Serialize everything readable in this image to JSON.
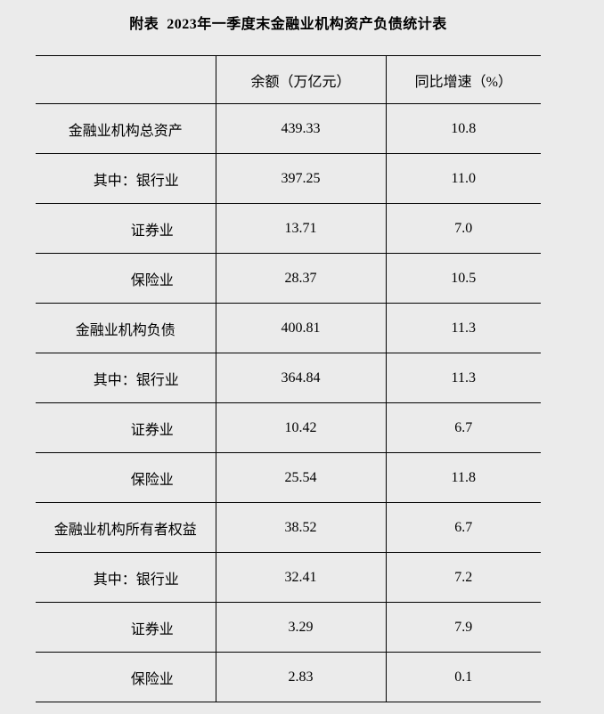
{
  "page": {
    "background_color": "#ebebeb",
    "text_color": "#000000",
    "border_color": "#000000"
  },
  "title": "附表  2023年一季度末金融业机构资产负债统计表",
  "table": {
    "columns": [
      {
        "label": ""
      },
      {
        "label": "余额（万亿元）"
      },
      {
        "label": "同比增速（%）"
      }
    ],
    "rows": [
      {
        "label": "金融业机构总资产",
        "indent": 0,
        "balance": "439.33",
        "growth": "10.8"
      },
      {
        "label": "其中：银行业",
        "indent": 1,
        "balance": "397.25",
        "growth": "11.0"
      },
      {
        "label": "证券业",
        "indent": 2,
        "balance": "13.71",
        "growth": "7.0"
      },
      {
        "label": "保险业",
        "indent": 2,
        "balance": "28.37",
        "growth": "10.5"
      },
      {
        "label": "金融业机构负债",
        "indent": 0,
        "balance": "400.81",
        "growth": "11.3"
      },
      {
        "label": "其中：银行业",
        "indent": 1,
        "balance": "364.84",
        "growth": "11.3"
      },
      {
        "label": "证券业",
        "indent": 2,
        "balance": "10.42",
        "growth": "6.7"
      },
      {
        "label": "保险业",
        "indent": 2,
        "balance": "25.54",
        "growth": "11.8"
      },
      {
        "label": "金融业机构所有者权益",
        "indent": 0,
        "balance": "38.52",
        "growth": "6.7"
      },
      {
        "label": "其中：银行业",
        "indent": 1,
        "balance": "32.41",
        "growth": "7.2"
      },
      {
        "label": "证券业",
        "indent": 2,
        "balance": "3.29",
        "growth": "7.9"
      },
      {
        "label": "保险业",
        "indent": 2,
        "balance": "2.83",
        "growth": "0.1"
      }
    ]
  }
}
